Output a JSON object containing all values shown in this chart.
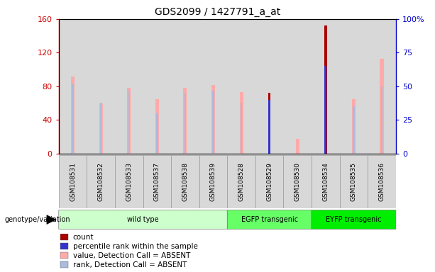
{
  "title": "GDS2099 / 1427791_a_at",
  "samples": [
    "GSM108531",
    "GSM108532",
    "GSM108533",
    "GSM108537",
    "GSM108538",
    "GSM108539",
    "GSM108528",
    "GSM108529",
    "GSM108530",
    "GSM108534",
    "GSM108535",
    "GSM108536"
  ],
  "count": [
    null,
    null,
    null,
    null,
    null,
    null,
    null,
    72,
    null,
    152,
    null,
    null
  ],
  "percentile_rank": [
    null,
    null,
    null,
    null,
    null,
    null,
    null,
    40,
    null,
    65,
    null,
    null
  ],
  "value_absent": [
    92,
    60,
    78,
    65,
    78,
    82,
    73,
    null,
    18,
    null,
    65,
    113
  ],
  "rank_absent": [
    52,
    38,
    47,
    30,
    45,
    47,
    38,
    null,
    null,
    null,
    35,
    50
  ],
  "groups": [
    {
      "label": "wild type",
      "start": 0,
      "end": 6,
      "color": "#ccffcc"
    },
    {
      "label": "EGFP transgenic",
      "start": 6,
      "end": 9,
      "color": "#66ff66"
    },
    {
      "label": "EYFP transgenic",
      "start": 9,
      "end": 12,
      "color": "#00ee00"
    }
  ],
  "ylim_left": [
    0,
    160
  ],
  "ylim_right": [
    0,
    100
  ],
  "yticks_left": [
    0,
    40,
    80,
    120,
    160
  ],
  "yticks_right": [
    0,
    25,
    50,
    75,
    100
  ],
  "yticklabels_right": [
    "0",
    "25",
    "50",
    "75",
    "100%"
  ],
  "count_color": "#aa0000",
  "percentile_color": "#3333cc",
  "value_absent_color": "#ffaaaa",
  "rank_absent_color": "#aabbdd",
  "axis_left_color": "#cc0000",
  "axis_right_color": "#0000cc",
  "genotype_label": "genotype/variation",
  "legend_items": [
    {
      "label": "count",
      "color": "#aa0000"
    },
    {
      "label": "percentile rank within the sample",
      "color": "#3333cc"
    },
    {
      "label": "value, Detection Call = ABSENT",
      "color": "#ffaaaa"
    },
    {
      "label": "rank, Detection Call = ABSENT",
      "color": "#aabbdd"
    }
  ]
}
